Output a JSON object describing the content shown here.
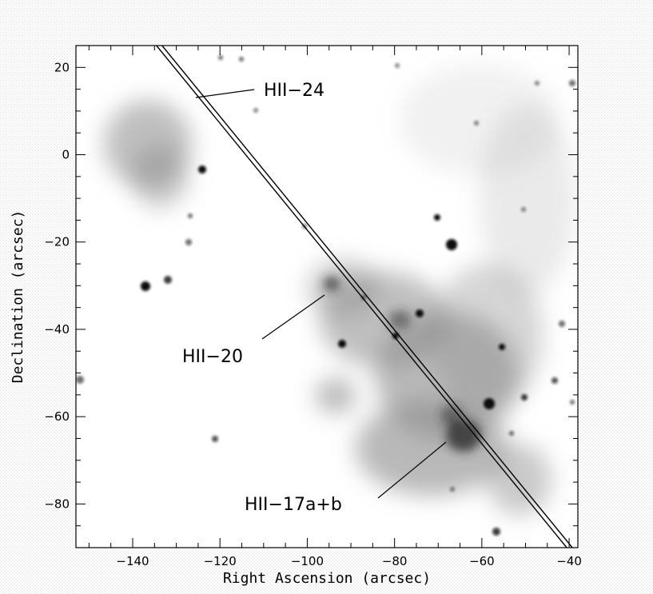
{
  "axes": {
    "xlabel": "Right Ascension (arcsec)",
    "ylabel": "Declination (arcsec)",
    "xlim": [
      -153,
      -38
    ],
    "ylim": [
      -90,
      25
    ],
    "xticks": [
      {
        "value": -140,
        "label": "−140"
      },
      {
        "value": -120,
        "label": "−120"
      },
      {
        "value": -100,
        "label": "−100"
      },
      {
        "value": -80,
        "label": "−80"
      },
      {
        "value": -60,
        "label": "−60"
      },
      {
        "value": -40,
        "label": "−40"
      }
    ],
    "yticks": [
      {
        "value": 20,
        "label": "20"
      },
      {
        "value": 0,
        "label": "0"
      },
      {
        "value": -20,
        "label": "−20"
      },
      {
        "value": -40,
        "label": "−40"
      },
      {
        "value": -60,
        "label": "−60"
      },
      {
        "value": -80,
        "label": "−80"
      }
    ]
  },
  "slit": {
    "start": [
      -134,
      25
    ],
    "end": [
      -40,
      -90
    ]
  },
  "annotations": [
    {
      "id": "hii-24",
      "text": "HII−24"
    },
    {
      "id": "hii-20",
      "text": "HII−20"
    },
    {
      "id": "hii-17",
      "text": "HII−17a+b"
    }
  ],
  "colors": {
    "background": "#ffffff",
    "frame": "#000000",
    "emission": "#5a5a5a",
    "stars": "#000000"
  }
}
